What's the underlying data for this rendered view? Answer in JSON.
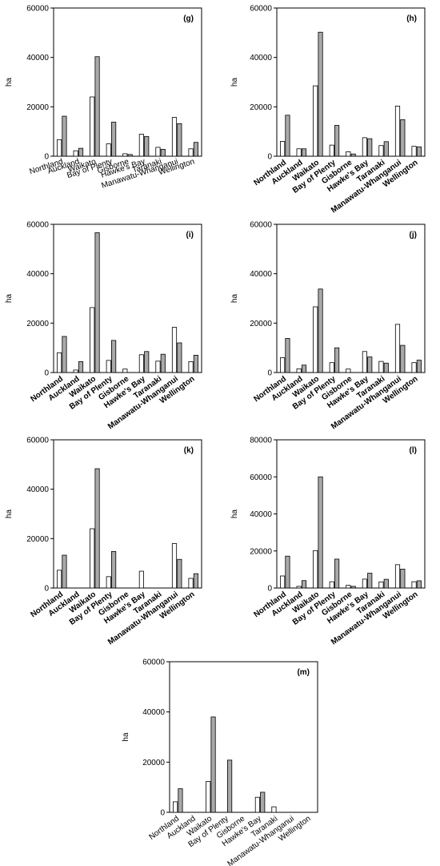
{
  "chart_data": [
    {
      "panel_label": "(g)",
      "type": "bar",
      "ylabel": "ha",
      "ylim": [
        0,
        60000
      ],
      "yticks": [
        "0",
        "20000",
        "40000",
        "60000"
      ],
      "categories": [
        "Northland",
        "Auckland",
        "Waikato",
        "Bay of Plenty",
        "Gisborne",
        "Hawke's Bay",
        "Taranaki",
        "Manawatu-Whanganui",
        "Wellington"
      ],
      "series": [
        {
          "values": [
            6700,
            2200,
            24000,
            5000,
            1000,
            8900,
            3600,
            15700,
            3000
          ],
          "color": "#ffffff"
        },
        {
          "values": [
            16200,
            3200,
            40300,
            13800,
            700,
            8000,
            2800,
            13200,
            5600
          ],
          "color": "#a9a9a9"
        }
      ],
      "grid": false
    },
    {
      "panel_label": "(h)",
      "type": "bar",
      "ylabel": "ha",
      "ylim": [
        0,
        60000
      ],
      "yticks": [
        "0",
        "20000",
        "40000",
        "60000"
      ],
      "categories": [
        "Northland",
        "Auckland",
        "Waikato",
        "Bay of Plenty",
        "Gisborne",
        "Hawke's Bay",
        "Taranaki",
        "Manawatu-Whanganui",
        "Wellington"
      ],
      "series": [
        {
          "values": [
            6000,
            3000,
            28500,
            4500,
            1800,
            7500,
            4300,
            20300,
            4000
          ],
          "color": "#ffffff"
        },
        {
          "values": [
            16600,
            3000,
            50200,
            12500,
            900,
            7100,
            5900,
            14800,
            3800
          ],
          "color": "#a9a9a9"
        }
      ],
      "grid": false
    },
    {
      "panel_label": "(i)",
      "type": "bar",
      "ylabel": "ha",
      "ylim": [
        0,
        60000
      ],
      "yticks": [
        "0",
        "20000",
        "40000",
        "60000"
      ],
      "categories": [
        "Northland",
        "Auckland",
        "Waikato",
        "Bay of Plenty",
        "Gisborne",
        "Hawke's Bay",
        "Taranaki",
        "Manawatu-Whanganui",
        "Wellington"
      ],
      "series": [
        {
          "values": [
            8000,
            1000,
            26300,
            4900,
            1400,
            7200,
            4600,
            18300,
            4400
          ],
          "color": "#ffffff"
        },
        {
          "values": [
            14600,
            4400,
            56600,
            13000,
            0,
            8500,
            7400,
            12000,
            7000
          ],
          "color": "#a9a9a9"
        }
      ],
      "grid": false
    },
    {
      "panel_label": "(j)",
      "type": "bar",
      "ylabel": "ha",
      "ylim": [
        0,
        60000
      ],
      "yticks": [
        "0",
        "20000",
        "40000",
        "60000"
      ],
      "categories": [
        "Northland",
        "Auckland",
        "Waikato",
        "Bay of Plenty",
        "Gisborne",
        "Hawke's Bay",
        "Taranaki",
        "Manawatu-Whanganui",
        "Wellington"
      ],
      "series": [
        {
          "values": [
            6000,
            1500,
            26600,
            4000,
            1400,
            8500,
            4500,
            19500,
            4000
          ],
          "color": "#ffffff"
        },
        {
          "values": [
            13800,
            3000,
            33800,
            10000,
            0,
            6300,
            3800,
            11000,
            5000
          ],
          "color": "#a9a9a9"
        }
      ],
      "grid": false
    },
    {
      "panel_label": "(k)",
      "type": "bar",
      "ylabel": "ha",
      "ylim": [
        0,
        60000
      ],
      "yticks": [
        "0",
        "20000",
        "40000",
        "60000"
      ],
      "categories": [
        "Northland",
        "Auckland",
        "Waikato",
        "Bay of Plenty",
        "Gisborne",
        "Hawke's Bay",
        "Taranaki",
        "Manawatu-Whanganui",
        "Wellington"
      ],
      "series": [
        {
          "values": [
            7200,
            0,
            24000,
            4600,
            0,
            6800,
            0,
            18000,
            3900
          ],
          "color": "#ffffff"
        },
        {
          "values": [
            13300,
            0,
            48300,
            14800,
            0,
            0,
            0,
            11600,
            5800
          ],
          "color": "#a9a9a9"
        }
      ],
      "grid": false
    },
    {
      "panel_label": "(l)",
      "type": "bar",
      "ylabel": "ha",
      "ylim": [
        0,
        80000
      ],
      "yticks": [
        "0",
        "20000",
        "40000",
        "60000",
        "80000"
      ],
      "categories": [
        "Northland",
        "Auckland",
        "Waikato",
        "Bay of Plenty",
        "Gisborne",
        "Hawke's Bay",
        "Taranaki",
        "Manawatu-Whanganui",
        "Wellington"
      ],
      "series": [
        {
          "values": [
            6500,
            900,
            20200,
            3400,
            1500,
            4800,
            3300,
            12600,
            3400
          ],
          "color": "#ffffff"
        },
        {
          "values": [
            17200,
            4000,
            60000,
            15600,
            900,
            8000,
            4700,
            10200,
            3900
          ],
          "color": "#a9a9a9"
        }
      ],
      "grid": false
    },
    {
      "panel_label": "(m)",
      "type": "bar",
      "ylabel": "ha",
      "ylim": [
        0,
        60000
      ],
      "yticks": [
        "0",
        "20000",
        "40000",
        "60000"
      ],
      "categories": [
        "Northland",
        "Auckland",
        "Waikato",
        "Bay of Plenty",
        "Gisborne",
        "Hawke's Bay",
        "Taranaki",
        "Manawatu-Whanganui",
        "Wellington"
      ],
      "series": [
        {
          "values": [
            4200,
            0,
            12300,
            0,
            0,
            6000,
            2200,
            0,
            0
          ],
          "color": "#ffffff"
        },
        {
          "values": [
            9400,
            0,
            38000,
            20800,
            0,
            8000,
            0,
            0,
            0
          ],
          "color": "#a9a9a9"
        }
      ],
      "grid": false
    }
  ]
}
